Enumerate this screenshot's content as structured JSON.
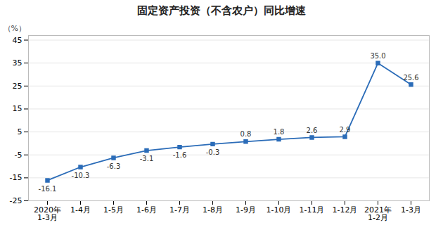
{
  "chart_data": {
    "type": "line",
    "title": "固定资产投资（不含农户）同比增速",
    "ylabel": "（%）",
    "categories": [
      "2020年\n1-3月",
      "1-4月",
      "1-5月",
      "1-6月",
      "1-7月",
      "1-8月",
      "1-9月",
      "1-10月",
      "1-11月",
      "1-12月",
      "2021年\n1-2月",
      "1-3月"
    ],
    "values": [
      -16.1,
      -10.3,
      -6.3,
      -3.1,
      -1.6,
      -0.3,
      0.8,
      1.8,
      2.6,
      2.9,
      35.0,
      25.6
    ],
    "value_labels": [
      "-16.1",
      "-10.3",
      "-6.3",
      "-3.1",
      "-1.6",
      "-0.3",
      "0.8",
      "1.8",
      "2.6",
      "2.9",
      "35.0",
      "25.6"
    ],
    "data_labels": true,
    "color": "#2b6cb8",
    "marker": "square",
    "ylim": [
      -25,
      47
    ],
    "yticks": [
      -25,
      -15,
      -5,
      5,
      15,
      25,
      35,
      45
    ],
    "grid": true
  }
}
